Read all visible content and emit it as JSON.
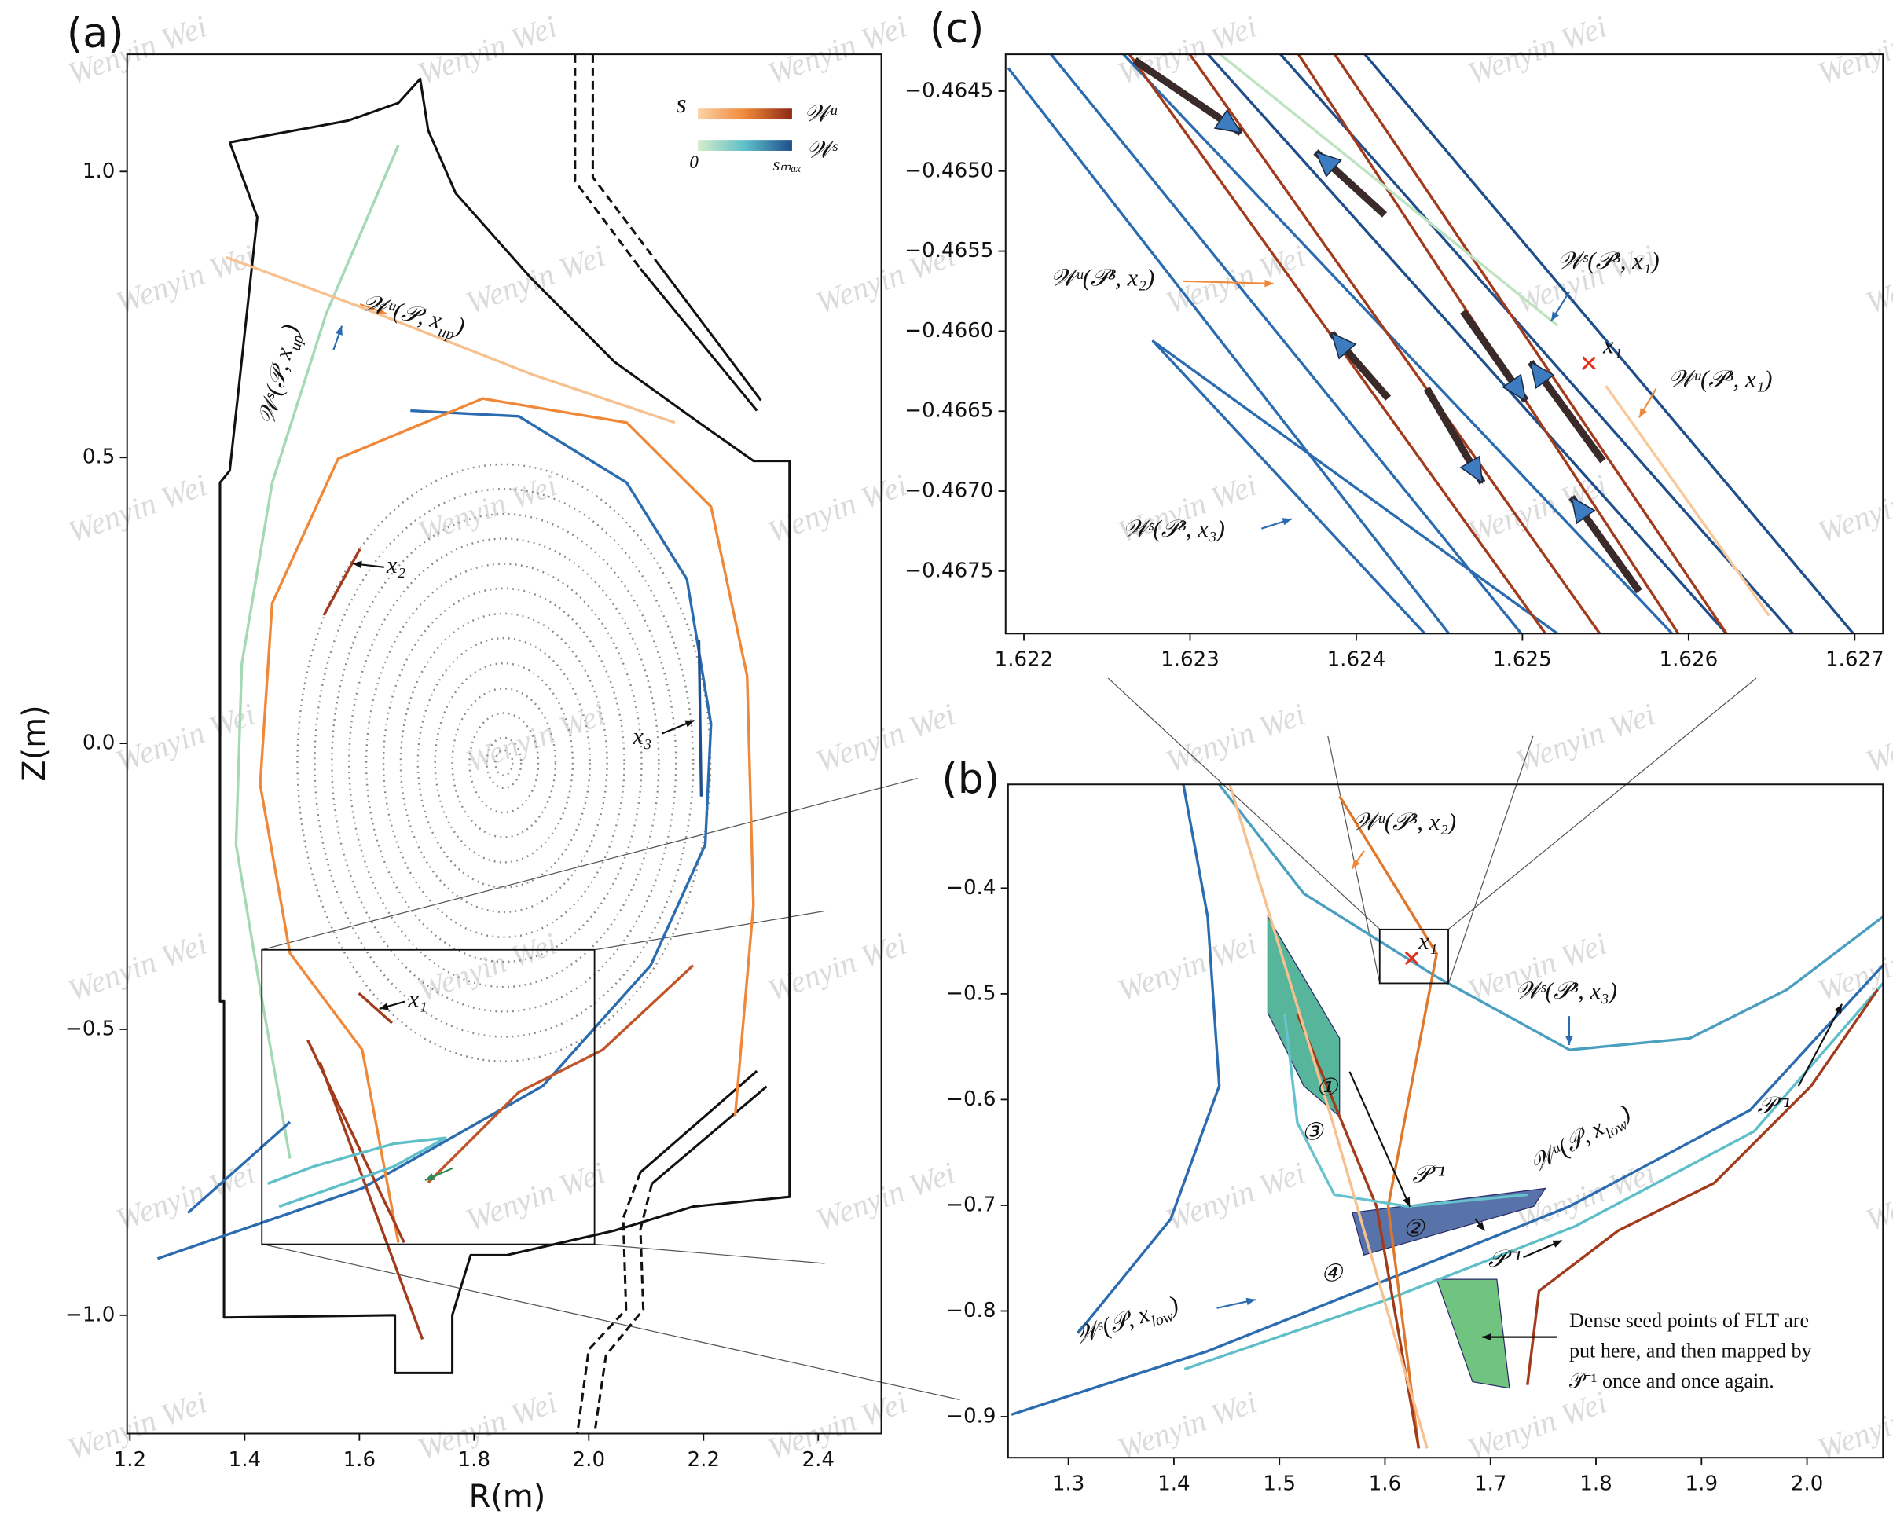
{
  "watermark": "Wenyin Wei",
  "chart_data": [
    {
      "type": "line",
      "label": "(a)",
      "xlabel": "R(m)",
      "ylabel": "Z(m)",
      "xlim": [
        1.195,
        2.51
      ],
      "ylim": [
        -1.207,
        1.205
      ],
      "xticks": [
        1.2,
        1.4,
        1.6,
        1.8,
        {
          "value": 2.0,
          "label": "2.0"
        },
        2.2,
        2.4
      ],
      "yticks": [
        {
          "value": 1.0,
          "label": "1.0"
        },
        0.5,
        {
          "value": 0.0,
          "label": "0.0"
        },
        {
          "value": -0.5,
          "label": "−0.5"
        },
        {
          "value": -1.0,
          "label": "−1.0"
        }
      ],
      "colorbar_labels": [
        "s",
        "𝒲ᵘ",
        "0",
        "sₘₐₓ",
        "𝒲ˢ"
      ],
      "box": {
        "x": [
          1.43,
          2.01
        ],
        "y": [
          -0.876,
          -0.361
        ]
      },
      "poincare": {
        "center": [
          1.852,
          -0.034
        ],
        "rx": [
          0.015,
          0.03,
          0.06,
          0.09,
          0.12,
          0.15,
          0.18,
          0.21,
          0.24,
          0.27,
          0.3,
          0.33,
          0.36
        ],
        "ry": [
          0.022,
          0.044,
          0.087,
          0.13,
          0.174,
          0.218,
          0.261,
          0.305,
          0.348,
          0.392,
          0.435,
          0.479,
          0.522
        ]
      },
      "series": [
        {
          "color": "#111111",
          "x": [
            1.374,
            1.58,
            1.668,
            1.706,
            1.72,
            1.768,
            1.899,
            2.045,
            2.192,
            2.287,
            2.35,
            2.35,
            2.182,
            2.045,
            1.857,
            1.794,
            1.762,
            1.762,
            1.662,
            1.662,
            1.364,
            1.364,
            1.357,
            1.357,
            1.374,
            1.422,
            1.374
          ],
          "y": [
            1.051,
            1.089,
            1.12,
            1.162,
            1.072,
            0.962,
            0.814,
            0.667,
            0.561,
            0.494,
            0.494,
            -0.793,
            -0.81,
            -0.852,
            -0.895,
            -0.895,
            -1.0,
            -1.101,
            -1.101,
            -1.0,
            -1.004,
            -0.451,
            -0.451,
            0.456,
            0.477,
            0.92,
            1.051
          ]
        },
        {
          "color": "#111111",
          "dash": true,
          "x": [
            1.976,
            1.976,
            2.09
          ],
          "y": [
            1.205,
            0.983,
            0.83
          ]
        },
        {
          "color": "#111111",
          "dash": true,
          "x": [
            2.007,
            2.007,
            2.12
          ],
          "y": [
            1.205,
            0.99,
            0.84
          ]
        },
        {
          "color": "#111111",
          "x": [
            2.09,
            2.293
          ],
          "y": [
            0.83,
            0.582
          ]
        },
        {
          "color": "#111111",
          "x": [
            2.12,
            2.3
          ],
          "y": [
            0.84,
            0.6
          ]
        },
        {
          "color": "#111111",
          "x": [
            2.293,
            2.09
          ],
          "y": [
            -0.573,
            -0.75
          ]
        },
        {
          "color": "#111111",
          "x": [
            2.31,
            2.11
          ],
          "y": [
            -0.6,
            -0.77
          ]
        },
        {
          "color": "#111111",
          "dash": true,
          "x": [
            2.09,
            2.06,
            2.065,
            2.0,
            1.98
          ],
          "y": [
            -0.75,
            -0.83,
            -0.99,
            -1.06,
            -1.207
          ]
        },
        {
          "color": "#111111",
          "dash": true,
          "x": [
            2.11,
            2.09,
            2.095,
            2.03,
            2.01
          ],
          "y": [
            -0.77,
            -0.85,
            -0.99,
            -1.07,
            -1.207
          ]
        },
        {
          "color": "#2b6cb0",
          "x": [
            1.248,
            1.605,
            1.92,
            2.108,
            2.203,
            2.213,
            2.171,
            2.066,
            1.878,
            1.689
          ],
          "y": [
            -0.901,
            -0.778,
            -0.599,
            -0.388,
            -0.177,
            0.034,
            0.287,
            0.456,
            0.572,
            0.582
          ]
        },
        {
          "color": "#f0883a",
          "x": [
            2.255,
            2.287,
            2.276,
            2.213,
            2.066,
            1.815,
            1.563,
            1.448,
            1.427,
            1.479,
            1.605,
            1.668
          ],
          "y": [
            -0.652,
            -0.283,
            0.118,
            0.414,
            0.561,
            0.603,
            0.498,
            0.245,
            -0.072,
            -0.367,
            -0.536,
            -0.873
          ]
        },
        {
          "color": "#a5d8b4",
          "x": [
            1.668,
            1.542,
            1.448,
            1.395,
            1.385,
            1.427,
            1.479
          ],
          "y": [
            1.046,
            0.751,
            0.456,
            0.139,
            -0.177,
            -0.43,
            -0.726
          ]
        },
        {
          "color": "#f7c08f",
          "x": [
            1.368,
            1.605,
            1.899,
            2.15
          ],
          "y": [
            0.85,
            0.762,
            0.646,
            0.561
          ]
        },
        {
          "color": "#a23b1c",
          "x": [
            1.51,
            1.678
          ],
          "y": [
            -0.519,
            -0.873
          ]
        },
        {
          "color": "#a23b1c",
          "x": [
            1.531,
            1.71
          ],
          "y": [
            -0.557,
            -1.042
          ]
        },
        {
          "color": "#c0552a",
          "x": [
            1.72,
            1.878,
            2.024,
            2.182
          ],
          "y": [
            -0.768,
            -0.61,
            -0.536,
            -0.388
          ]
        },
        {
          "color": "#a23b1c",
          "x": [
            1.599,
            1.657
          ],
          "y": [
            -0.437,
            -0.489
          ]
        },
        {
          "color": "#a23b1c",
          "x": [
            1.538,
            1.601
          ],
          "y": [
            0.224,
            0.34
          ]
        },
        {
          "color": "#1f4e8c",
          "x": [
            2.192,
            2.196
          ],
          "y": [
            0.181,
            -0.093
          ]
        },
        {
          "color": "#5fbfc9",
          "x": [
            1.44,
            1.52,
            1.66,
            1.75,
            1.66,
            1.46
          ],
          "y": [
            -0.77,
            -0.74,
            -0.7,
            -0.69,
            -0.74,
            -0.81
          ]
        },
        {
          "color": "#2b6cb0",
          "x": [
            1.301,
            1.479
          ],
          "y": [
            -0.821,
            -0.662
          ]
        }
      ],
      "annotations": [
        {
          "main": "𝒲ᵘ(𝒫, x",
          "sub": "up",
          "tail": ")"
        },
        {
          "main": "𝒲ˢ(𝒫, x",
          "sub": "up",
          "tail": ")"
        },
        "x₂",
        "x₃",
        "x₁"
      ]
    },
    {
      "type": "line",
      "label": "(b)",
      "xlim": [
        1.2428,
        2.072
      ],
      "ylim": [
        -0.9388,
        -0.3018
      ],
      "xticks": [
        1.3,
        1.4,
        1.5,
        1.6,
        1.7,
        1.8,
        1.9,
        {
          "value": 2.0,
          "label": "2.0"
        }
      ],
      "yticks": [
        {
          "value": -0.4,
          "label": "−0.4"
        },
        {
          "value": -0.5,
          "label": "−0.5"
        },
        {
          "value": -0.6,
          "label": "−0.6"
        },
        {
          "value": -0.7,
          "label": "−0.7"
        },
        {
          "value": -0.8,
          "label": "−0.8"
        },
        {
          "value": -0.9,
          "label": "−0.9"
        }
      ],
      "box": {
        "x": [
          1.595,
          1.66
        ],
        "y": [
          -0.49,
          -0.439
        ]
      },
      "marker": {
        "x": 1.6254,
        "y": -0.4662,
        "color": "#e0301e"
      },
      "fills": [
        {
          "color": "#3aa88a",
          "x": [
            1.489,
            1.557,
            1.557,
            1.523,
            1.489
          ],
          "y": [
            -0.427,
            -0.542,
            -0.616,
            -0.587,
            -0.518
          ]
        },
        {
          "color": "#3b5a9a",
          "x": [
            1.569,
            1.752,
            1.741,
            1.58
          ],
          "y": [
            -0.707,
            -0.684,
            -0.701,
            -0.747
          ]
        },
        {
          "color": "#58b86a",
          "x": [
            1.649,
            1.706,
            1.718,
            1.683
          ],
          "y": [
            -0.77,
            -0.77,
            -0.873,
            -0.867
          ]
        }
      ],
      "series": [
        {
          "color": "#2b6cb0",
          "x": [
            1.409,
            1.432,
            1.443,
            1.397,
            1.309
          ],
          "y": [
            -0.302,
            -0.427,
            -0.587,
            -0.713,
            -0.821
          ]
        },
        {
          "color": "#4a9fc0",
          "x": [
            1.443,
            1.523,
            1.649,
            1.775,
            1.889,
            1.981,
            2.072
          ],
          "y": [
            -0.302,
            -0.405,
            -0.484,
            -0.553,
            -0.542,
            -0.496,
            -0.427
          ]
        },
        {
          "color": "#2b6cb0",
          "x": [
            1.246,
            1.432,
            1.603,
            1.775,
            1.946,
            2.072
          ],
          "y": [
            -0.898,
            -0.838,
            -0.77,
            -0.701,
            -0.61,
            -0.473
          ]
        },
        {
          "color": "#5fbfc9",
          "x": [
            1.41,
            1.6,
            1.78,
            1.95,
            2.072
          ],
          "y": [
            -0.855,
            -0.79,
            -0.72,
            -0.63,
            -0.49
          ]
        },
        {
          "color": "#e0782c",
          "x": [
            1.557,
            1.649,
            1.603,
            1.632
          ],
          "y": [
            -0.313,
            -0.462,
            -0.701,
            -0.93
          ]
        },
        {
          "color": "#a23b1c",
          "x": [
            1.517,
            1.592,
            1.632
          ],
          "y": [
            -0.519,
            -0.701,
            -0.93
          ]
        },
        {
          "color": "#a23b1c",
          "x": [
            1.735,
            1.746,
            1.821,
            1.912,
            2.004,
            2.067
          ],
          "y": [
            -0.87,
            -0.781,
            -0.724,
            -0.679,
            -0.587,
            -0.496
          ]
        },
        {
          "color": "#66c2cc",
          "x": [
            1.505,
            1.517,
            1.552,
            1.621,
            1.735
          ],
          "y": [
            -0.519,
            -0.622,
            -0.69,
            -0.701,
            -0.69
          ]
        },
        {
          "color": "#f7c08f",
          "x": [
            1.453,
            1.55,
            1.64
          ],
          "y": [
            -0.302,
            -0.62,
            -0.93
          ]
        }
      ],
      "annotations": [
        "𝒲ᵘ(𝒫³, x₂)",
        "x₁",
        "𝒲ˢ(𝒫³, x₃)",
        "①",
        "③",
        "②",
        "④",
        "𝒫⁻¹",
        "𝒫⁻¹",
        "𝒫⁻¹",
        {
          "main": "𝒲ᵘ(𝒫, x",
          "sub": "low",
          "tail": ")"
        },
        {
          "main": "𝒲ˢ(𝒫, x",
          "sub": "low",
          "tail": ")"
        },
        "Dense seed points of FLT are",
        "put here, and then mapped by",
        "𝒫⁻¹ once and once again."
      ]
    },
    {
      "type": "line",
      "label": "(c)",
      "xlim": [
        1.62189,
        1.62717
      ],
      "ylim": [
        -0.46789,
        -0.46427
      ],
      "xticks": [
        1.622,
        1.623,
        1.624,
        1.625,
        1.626,
        1.627
      ],
      "yticks": [
        {
          "value": -0.4645,
          "label": "−0.4645"
        },
        {
          "value": -0.465,
          "label": "−0.4650"
        },
        {
          "value": -0.4655,
          "label": "−0.4655"
        },
        {
          "value": -0.466,
          "label": "−0.4660"
        },
        {
          "value": -0.4665,
          "label": "−0.4665"
        },
        {
          "value": -0.467,
          "label": "−0.4670"
        },
        {
          "value": -0.4675,
          "label": "−0.4675"
        }
      ],
      "marker": {
        "x": 1.6254,
        "y": -0.4662,
        "color": "#e0301e"
      },
      "series": [
        {
          "color": "#2b6cb0",
          "x": [
            1.621906,
            1.624558
          ],
          "y": [
            -0.464356,
            -0.467891
          ]
        },
        {
          "color": "#2b6cb0",
          "x": [
            1.62216,
            1.624994
          ],
          "y": [
            -0.464266,
            -0.467891
          ]
        },
        {
          "color": "#2b6cb0",
          "x": [
            1.622596,
            1.625902
          ],
          "y": [
            -0.464266,
            -0.467891
          ]
        },
        {
          "color": "#1f4e8c",
          "x": [
            1.623105,
            1.626229
          ],
          "y": [
            -0.464266,
            -0.467891
          ]
        },
        {
          "color": "#1f4e8c",
          "x": [
            1.623541,
            1.626629
          ],
          "y": [
            -0.464266,
            -0.467891
          ]
        },
        {
          "color": "#1f4e8c",
          "x": [
            1.624049,
            1.626992
          ],
          "y": [
            -0.464266,
            -0.467891
          ]
        },
        {
          "color": "#2b6cb0",
          "x": [
            1.624413,
            1.622778,
            1.625212
          ],
          "y": [
            -0.467891,
            -0.466063,
            -0.467891
          ]
        },
        {
          "color": "#a23b1c",
          "x": [
            1.622632,
            1.625139
          ],
          "y": [
            -0.464266,
            -0.467891
          ]
        },
        {
          "color": "#a23b1c",
          "x": [
            1.622996,
            1.625466
          ],
          "y": [
            -0.464266,
            -0.467891
          ]
        },
        {
          "color": "#a23b1c",
          "x": [
            1.62365,
            1.625939
          ],
          "y": [
            -0.464266,
            -0.467891
          ]
        },
        {
          "color": "#a23b1c",
          "x": [
            1.623868,
            1.626229
          ],
          "y": [
            -0.464266,
            -0.467891
          ]
        },
        {
          "color": "#bde3c0",
          "x": [
            1.623177,
            1.625212
          ],
          "y": [
            -0.464266,
            -0.465965
          ]
        },
        {
          "color": "#f9c99a",
          "x": [
            1.625503,
            1.626484
          ],
          "y": [
            -0.466343,
            -0.467778
          ]
        }
      ],
      "annotations": [
        "𝒲ᵘ(𝒫³, x₂)",
        "𝒲ˢ(𝒫³, x₁)",
        "x₁",
        "𝒲ᵘ(𝒫³, x₁)",
        "𝒲ˢ(𝒫³, x₃)"
      ]
    }
  ]
}
